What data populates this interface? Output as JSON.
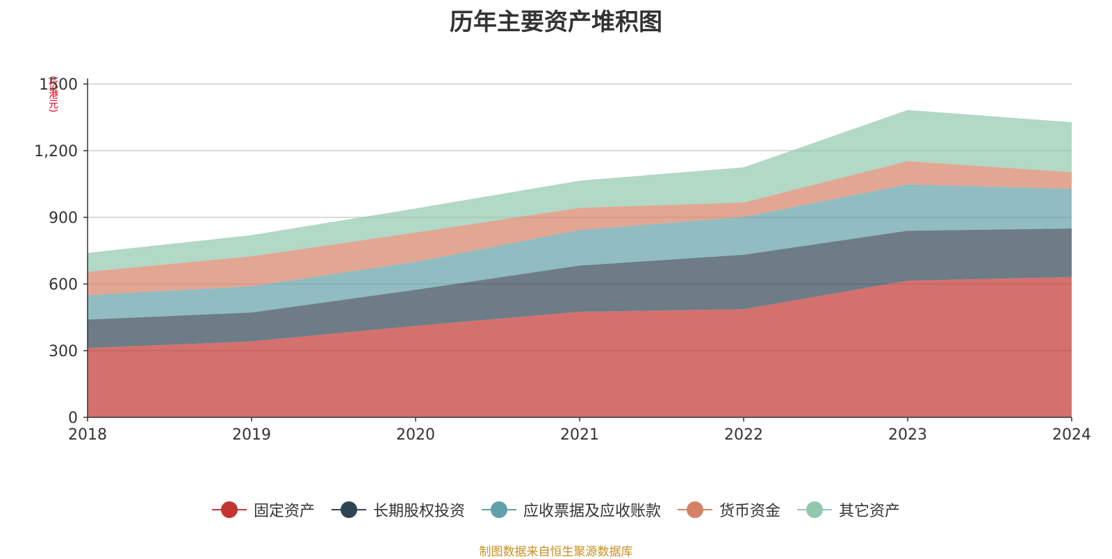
{
  "chart_data": {
    "type": "area",
    "stacked": true,
    "title": "历年主要资产堆积图",
    "ylabel": "(亿港元)",
    "ylim": [
      0,
      1500
    ],
    "yticks": [
      "0",
      "300",
      "600",
      "900",
      "1,200",
      "1500"
    ],
    "ytick_values": [
      0,
      300,
      600,
      900,
      1200,
      1500
    ],
    "x": [
      "2018",
      "2019",
      "2020",
      "2021",
      "2022",
      "2023",
      "2024"
    ],
    "grid": true,
    "legend_position": "bottom",
    "series": [
      {
        "name": "固定资产",
        "color": "#c23531",
        "values": [
          312,
          342,
          412,
          475,
          487,
          615,
          632
        ]
      },
      {
        "name": "长期股权投资",
        "color": "#2f4554",
        "values": [
          128,
          130,
          162,
          208,
          245,
          225,
          218
        ]
      },
      {
        "name": "应收票据及应收账款",
        "color": "#61a0a8",
        "values": [
          110,
          118,
          126,
          160,
          170,
          208,
          178
        ]
      },
      {
        "name": "货币资金",
        "color": "#d48265",
        "values": [
          105,
          135,
          132,
          100,
          65,
          105,
          75
        ]
      },
      {
        "name": "其它资产",
        "color": "#91c7ae",
        "values": [
          85,
          95,
          108,
          122,
          158,
          230,
          225
        ]
      }
    ],
    "source": "制图数据来自恒生聚源数据库"
  }
}
